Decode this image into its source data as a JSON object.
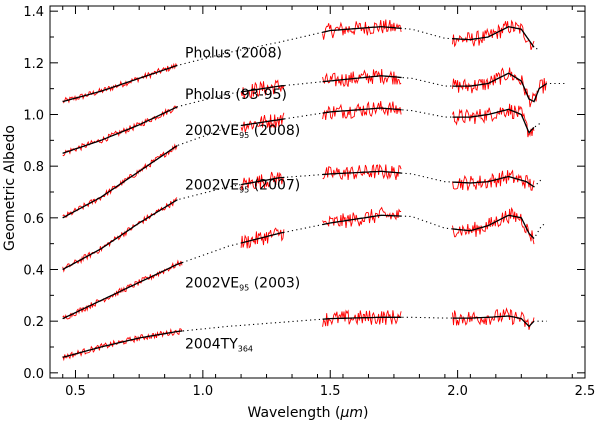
{
  "chart_data": {
    "type": "line",
    "xlabel_prefix": "Wavelength (",
    "xlabel_unit": "μm",
    "xlabel_suffix": ")",
    "ylabel": "Geometric Albedo",
    "xlim": [
      0.4,
      2.5
    ],
    "ylim": [
      -0.02,
      1.42
    ],
    "xticks": [
      0.5,
      1.0,
      1.5,
      2.0,
      2.5
    ],
    "xtick_labels": [
      "0.5",
      "1.0",
      "1.5",
      "2.0",
      "2.5"
    ],
    "yticks": [
      0.0,
      0.2,
      0.4,
      0.6,
      0.8,
      1.0,
      1.2,
      1.4
    ],
    "ytick_labels": [
      "0.0",
      "0.2",
      "0.4",
      "0.6",
      "0.8",
      "1.0",
      "1.2",
      "1.4"
    ],
    "colors": {
      "observed": "#ff0000",
      "model": "#000000",
      "model_extension": "#000000",
      "axis": "#000000"
    },
    "series": [
      {
        "name": "Pholus (2008)",
        "label_main": "Pholus (2008)",
        "label_sub": "",
        "label_after": "",
        "label_anchor": [
          0.93,
          1.22
        ],
        "model": [
          [
            0.45,
            1.05
          ],
          [
            0.6,
            1.09
          ],
          [
            0.75,
            1.14
          ],
          [
            0.9,
            1.19
          ],
          [
            1.1,
            1.24
          ],
          [
            1.3,
            1.28
          ],
          [
            1.5,
            1.325
          ],
          [
            1.7,
            1.34
          ],
          [
            1.82,
            1.33
          ],
          [
            1.95,
            1.295
          ],
          [
            2.05,
            1.29
          ],
          [
            2.12,
            1.3
          ],
          [
            2.2,
            1.34
          ],
          [
            2.25,
            1.33
          ],
          [
            2.3,
            1.26
          ],
          [
            2.32,
            1.25
          ]
        ],
        "observed_segments": [
          [
            0.45,
            0.9
          ],
          [
            1.47,
            1.78
          ],
          [
            1.98,
            2.3
          ]
        ],
        "extension_end": 2.32
      },
      {
        "name": "Pholus (93-95)",
        "label_main": "Pholus (93-95)",
        "label_sub": "",
        "label_after": "",
        "label_anchor": [
          0.93,
          1.06
        ],
        "model": [
          [
            0.45,
            0.85
          ],
          [
            0.6,
            0.9
          ],
          [
            0.75,
            0.96
          ],
          [
            0.9,
            1.03
          ],
          [
            1.1,
            1.08
          ],
          [
            1.3,
            1.11
          ],
          [
            1.5,
            1.13
          ],
          [
            1.7,
            1.15
          ],
          [
            1.82,
            1.14
          ],
          [
            1.95,
            1.11
          ],
          [
            2.05,
            1.11
          ],
          [
            2.12,
            1.12
          ],
          [
            2.2,
            1.16
          ],
          [
            2.25,
            1.13
          ],
          [
            2.28,
            1.06
          ],
          [
            2.3,
            1.05
          ],
          [
            2.32,
            1.1
          ],
          [
            2.35,
            1.12
          ],
          [
            2.43,
            1.12
          ]
        ],
        "observed_segments": [
          [
            0.45,
            0.9
          ],
          [
            1.15,
            1.32
          ],
          [
            1.47,
            1.78
          ],
          [
            1.98,
            2.35
          ]
        ],
        "extension_end": 2.43
      },
      {
        "name": "2002VE95 (2008)",
        "label_main": "2002VE",
        "label_sub": "95",
        "label_after": " (2008)",
        "label_anchor": [
          0.93,
          0.92
        ],
        "model": [
          [
            0.45,
            0.6
          ],
          [
            0.6,
            0.68
          ],
          [
            0.75,
            0.78
          ],
          [
            0.9,
            0.88
          ],
          [
            1.1,
            0.95
          ],
          [
            1.3,
            0.98
          ],
          [
            1.5,
            1.01
          ],
          [
            1.7,
            1.025
          ],
          [
            1.82,
            1.015
          ],
          [
            1.95,
            0.99
          ],
          [
            2.05,
            0.99
          ],
          [
            2.12,
            1.0
          ],
          [
            2.2,
            1.02
          ],
          [
            2.25,
            1.0
          ],
          [
            2.28,
            0.93
          ],
          [
            2.3,
            0.95
          ],
          [
            2.33,
            0.97
          ]
        ],
        "observed_segments": [
          [
            0.45,
            0.9
          ],
          [
            1.15,
            1.32
          ],
          [
            1.47,
            1.78
          ],
          [
            1.98,
            2.3
          ]
        ],
        "extension_end": 2.33
      },
      {
        "name": "2002VE95 (2007)",
        "label_main": "2002VE",
        "label_sub": "95",
        "label_after": " (2007)",
        "label_anchor": [
          0.93,
          0.71
        ],
        "model": [
          [
            0.45,
            0.4
          ],
          [
            0.6,
            0.48
          ],
          [
            0.75,
            0.58
          ],
          [
            0.9,
            0.67
          ],
          [
            1.1,
            0.72
          ],
          [
            1.3,
            0.755
          ],
          [
            1.5,
            0.77
          ],
          [
            1.7,
            0.78
          ],
          [
            1.82,
            0.77
          ],
          [
            1.95,
            0.74
          ],
          [
            2.05,
            0.735
          ],
          [
            2.12,
            0.74
          ],
          [
            2.2,
            0.76
          ],
          [
            2.27,
            0.74
          ],
          [
            2.3,
            0.72
          ],
          [
            2.33,
            0.75
          ]
        ],
        "observed_segments": [
          [
            0.45,
            0.9
          ],
          [
            1.15,
            1.32
          ],
          [
            1.47,
            1.78
          ],
          [
            1.98,
            2.3
          ]
        ],
        "extension_end": 2.33
      },
      {
        "name": "2002VE95 (2003)",
        "label_main": "2002VE",
        "label_sub": "95",
        "label_after": " (2003)",
        "label_anchor": [
          0.93,
          0.33
        ],
        "model": [
          [
            0.45,
            0.21
          ],
          [
            0.6,
            0.28
          ],
          [
            0.75,
            0.35
          ],
          [
            0.9,
            0.42
          ],
          [
            1.1,
            0.49
          ],
          [
            1.3,
            0.54
          ],
          [
            1.5,
            0.58
          ],
          [
            1.7,
            0.61
          ],
          [
            1.82,
            0.605
          ],
          [
            1.95,
            0.56
          ],
          [
            2.05,
            0.55
          ],
          [
            2.12,
            0.57
          ],
          [
            2.2,
            0.61
          ],
          [
            2.25,
            0.6
          ],
          [
            2.28,
            0.54
          ],
          [
            2.3,
            0.52
          ],
          [
            2.33,
            0.57
          ],
          [
            2.35,
            0.58
          ]
        ],
        "observed_segments": [
          [
            0.45,
            0.92
          ],
          [
            1.15,
            1.32
          ],
          [
            1.47,
            1.78
          ],
          [
            1.98,
            2.3
          ]
        ],
        "extension_end": 2.35
      },
      {
        "name": "2004TY364",
        "label_main": "2004TY",
        "label_sub": "364",
        "label_after": "",
        "label_anchor": [
          0.93,
          0.095
        ],
        "model": [
          [
            0.45,
            0.06
          ],
          [
            0.6,
            0.1
          ],
          [
            0.75,
            0.135
          ],
          [
            0.9,
            0.16
          ],
          [
            1.1,
            0.18
          ],
          [
            1.3,
            0.195
          ],
          [
            1.5,
            0.21
          ],
          [
            1.7,
            0.215
          ],
          [
            1.82,
            0.215
          ],
          [
            1.95,
            0.212
          ],
          [
            2.05,
            0.212
          ],
          [
            2.12,
            0.215
          ],
          [
            2.2,
            0.22
          ],
          [
            2.25,
            0.21
          ],
          [
            2.28,
            0.18
          ],
          [
            2.3,
            0.2
          ],
          [
            2.35,
            0.2
          ]
        ],
        "observed_segments": [
          [
            0.45,
            0.92
          ],
          [
            1.47,
            1.78
          ],
          [
            1.98,
            2.3
          ]
        ],
        "extension_end": 2.35
      }
    ]
  }
}
